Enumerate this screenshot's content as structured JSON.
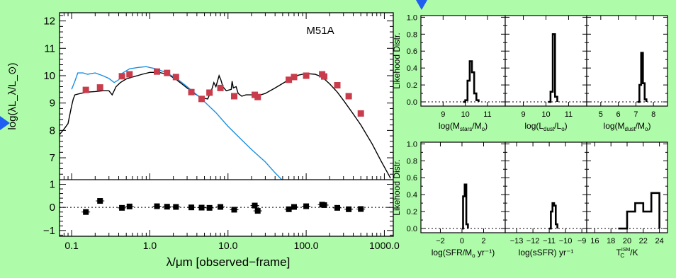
{
  "decorations": {
    "background_color": "#aefba9",
    "arrow_color": "#1e5ef0"
  },
  "chart_data": [
    {
      "type": "line",
      "title": "M51A",
      "xlabel": "λ/μm [observed−frame]",
      "ylabel": "log(λL_λ/L_⊙)",
      "xscale": "log",
      "xlim": [
        0.07,
        1300
      ],
      "ylim": [
        6.2,
        12.3
      ],
      "x_ticks": [
        0.1,
        1.0,
        10.0,
        100.0,
        1000.0
      ],
      "x_tick_labels": [
        "0.1",
        "1.0",
        "10.0",
        "100.0",
        "1000.0"
      ],
      "y_ticks": [
        7,
        8,
        9,
        10,
        11,
        12
      ],
      "y_tick_labels": [
        "7",
        "8",
        "9",
        "10",
        "11",
        "12"
      ],
      "series": [
        {
          "role": "model",
          "color": "#000000",
          "points": [
            [
              0.07,
              7.85
            ],
            [
              0.08,
              8.05
            ],
            [
              0.09,
              8.25
            ],
            [
              0.1,
              8.9
            ],
            [
              0.105,
              9.15
            ],
            [
              0.11,
              9.3
            ],
            [
              0.13,
              9.35
            ],
            [
              0.16,
              9.4
            ],
            [
              0.2,
              9.42
            ],
            [
              0.25,
              9.45
            ],
            [
              0.3,
              9.45
            ],
            [
              0.33,
              9.3
            ],
            [
              0.37,
              9.6
            ],
            [
              0.42,
              9.75
            ],
            [
              0.5,
              9.88
            ],
            [
              0.6,
              9.95
            ],
            [
              0.8,
              10.05
            ],
            [
              1.0,
              10.12
            ],
            [
              1.3,
              10.12
            ],
            [
              1.7,
              10.05
            ],
            [
              2.2,
              9.85
            ],
            [
              3.0,
              9.55
            ],
            [
              3.7,
              9.35
            ],
            [
              4.5,
              9.2
            ],
            [
              5.5,
              9.15
            ],
            [
              6.2,
              9.5
            ],
            [
              6.6,
              9.75
            ],
            [
              7.0,
              9.6
            ],
            [
              7.7,
              10.0
            ],
            [
              8.1,
              9.85
            ],
            [
              8.6,
              9.6
            ],
            [
              9.5,
              9.45
            ],
            [
              11.0,
              9.5
            ],
            [
              11.3,
              9.8
            ],
            [
              11.7,
              9.55
            ],
            [
              12.7,
              9.6
            ],
            [
              13.5,
              9.35
            ],
            [
              15,
              9.25
            ],
            [
              17,
              9.3
            ],
            [
              20,
              9.3
            ],
            [
              25,
              9.28
            ],
            [
              30,
              9.35
            ],
            [
              40,
              9.55
            ],
            [
              60,
              9.85
            ],
            [
              80,
              10.02
            ],
            [
              100,
              10.08
            ],
            [
              130,
              10.05
            ],
            [
              160,
              9.95
            ],
            [
              200,
              9.7
            ],
            [
              250,
              9.4
            ],
            [
              300,
              9.1
            ],
            [
              400,
              8.6
            ],
            [
              500,
              8.2
            ],
            [
              700,
              7.5
            ],
            [
              900,
              6.9
            ],
            [
              1200,
              6.25
            ]
          ]
        },
        {
          "role": "stellar",
          "color": "#1a8fe0",
          "points": [
            [
              0.1,
              9.5
            ],
            [
              0.11,
              9.8
            ],
            [
              0.12,
              10.1
            ],
            [
              0.14,
              10.1
            ],
            [
              0.16,
              10.05
            ],
            [
              0.2,
              10.1
            ],
            [
              0.25,
              10.0
            ],
            [
              0.3,
              9.9
            ],
            [
              0.35,
              9.75
            ],
            [
              0.4,
              9.85
            ],
            [
              0.45,
              10.1
            ],
            [
              0.55,
              10.25
            ],
            [
              0.7,
              10.3
            ],
            [
              0.9,
              10.33
            ],
            [
              1.0,
              10.3
            ],
            [
              1.2,
              10.25
            ],
            [
              1.6,
              10.12
            ],
            [
              2.2,
              9.9
            ],
            [
              3,
              9.6
            ],
            [
              4,
              9.3
            ],
            [
              5,
              9.05
            ],
            [
              7,
              8.65
            ],
            [
              10,
              8.15
            ],
            [
              15,
              7.65
            ],
            [
              20,
              7.3
            ],
            [
              30,
              6.85
            ],
            [
              40,
              6.45
            ],
            [
              55,
              6.05
            ]
          ]
        }
      ],
      "observed": {
        "color": "#c83c4b",
        "x": [
          0.152,
          0.231,
          0.44,
          0.55,
          1.235,
          1.662,
          2.159,
          3.4,
          4.6,
          5.8,
          8.0,
          12.0,
          22.0,
          24.0,
          60.0,
          70.0,
          100.0,
          160.0,
          170.0,
          250.0,
          350.0,
          500.0
        ],
        "y": [
          9.48,
          9.57,
          9.98,
          10.05,
          10.15,
          10.1,
          9.95,
          9.4,
          9.15,
          9.38,
          9.55,
          9.25,
          9.3,
          9.22,
          9.85,
          9.95,
          10.0,
          10.05,
          9.97,
          9.65,
          9.25,
          8.62
        ]
      },
      "residuals": {
        "ylim": [
          -1.25,
          1.2
        ],
        "y_ticks": [
          -1,
          0,
          1
        ],
        "y_tick_labels": [
          "−1",
          "0",
          "1"
        ],
        "x": [
          0.152,
          0.231,
          0.44,
          0.55,
          1.235,
          1.662,
          2.159,
          3.4,
          4.6,
          5.8,
          8.0,
          12.0,
          22.0,
          24.0,
          60.0,
          70.0,
          100.0,
          160.0,
          170.0,
          250.0,
          350.0,
          500.0
        ],
        "y": [
          -0.2,
          0.28,
          -0.02,
          0.04,
          0.05,
          0.03,
          0.02,
          0.0,
          -0.01,
          -0.02,
          0.02,
          -0.1,
          0.08,
          -0.15,
          -0.08,
          0.02,
          0.05,
          0.12,
          0.1,
          -0.02,
          -0.08,
          -0.07
        ]
      }
    },
    {
      "type": "bar",
      "ylabel": "Likehood Distr.",
      "ylim": [
        -0.05,
        1.02
      ],
      "y_ticks": [
        0.0,
        0.2,
        0.4,
        0.6,
        0.8,
        1.0
      ],
      "y_tick_labels": [
        "0.0",
        "0.2",
        "0.4",
        "0.6",
        "0.8",
        "1.0"
      ],
      "panels": [
        {
          "xlabel": "log(M_stars/M_o)",
          "xlim": [
            8.0,
            11.8
          ],
          "x_ticks": [
            9,
            10,
            11
          ],
          "x_tick_labels": [
            "9",
            "10",
            "11"
          ],
          "hist": [
            [
              9.9,
              0.0
            ],
            [
              10.0,
              0.02
            ],
            [
              10.1,
              0.25
            ],
            [
              10.2,
              0.48
            ],
            [
              10.3,
              0.35
            ],
            [
              10.4,
              0.1
            ],
            [
              10.5,
              0.02
            ],
            [
              10.6,
              0.0
            ]
          ]
        },
        {
          "xlabel": "log(L_dust/L_o)",
          "xlim": [
            8.2,
            11.8
          ],
          "x_ticks": [
            9,
            10,
            11
          ],
          "x_tick_labels": [
            "9",
            "10",
            "11"
          ],
          "hist": [
            [
              10.1,
              0.0
            ],
            [
              10.2,
              0.12
            ],
            [
              10.3,
              0.8
            ],
            [
              10.4,
              0.06
            ],
            [
              10.5,
              0.0
            ]
          ]
        },
        {
          "xlabel": "log(M_dust/M_o)",
          "xlim": [
            4.2,
            8.8
          ],
          "x_ticks": [
            5,
            6,
            7,
            8
          ],
          "x_tick_labels": [
            "5",
            "6",
            "7",
            "8"
          ],
          "hist": [
            [
              7.1,
              0.0
            ],
            [
              7.2,
              0.2
            ],
            [
              7.3,
              0.58
            ],
            [
              7.4,
              0.22
            ],
            [
              7.5,
              0.03
            ],
            [
              7.6,
              0.0
            ]
          ]
        },
        {
          "xlabel": "log(SFR/M_o yr⁻¹)",
          "xlim": [
            -3.8,
            4.0
          ],
          "x_ticks": [
            -2,
            0,
            2
          ],
          "x_tick_labels": [
            "−2",
            "0",
            "2"
          ],
          "hist": [
            [
              0.0,
              0.0
            ],
            [
              0.1,
              0.38
            ],
            [
              0.25,
              0.52
            ],
            [
              0.4,
              0.05
            ],
            [
              0.55,
              0.0
            ]
          ]
        },
        {
          "xlabel": "log(sSFR) yr⁻¹",
          "xlim": [
            -13.7,
            -8.7
          ],
          "x_ticks": [
            -13,
            -12,
            -11,
            -10,
            -9
          ],
          "x_tick_labels": [
            "−13",
            "−12",
            "−11",
            "−10",
            "−9"
          ],
          "hist": [
            [
              -11.0,
              0.0
            ],
            [
              -10.9,
              0.2
            ],
            [
              -10.8,
              0.3
            ],
            [
              -10.7,
              0.27
            ],
            [
              -10.6,
              0.05
            ],
            [
              -10.5,
              0.0
            ]
          ]
        },
        {
          "xlabel": "T_C^ISM/K",
          "xlim": [
            15.0,
            25.0
          ],
          "x_ticks": [
            16,
            18,
            20,
            22,
            24
          ],
          "x_tick_labels": [
            "16",
            "18",
            "20",
            "22",
            "24"
          ],
          "hist": [
            [
              18.9,
              0.0
            ],
            [
              20.0,
              0.2
            ],
            [
              21.0,
              0.3
            ],
            [
              22.0,
              0.2
            ],
            [
              23.0,
              0.42
            ],
            [
              24.0,
              0.0
            ]
          ]
        }
      ]
    }
  ]
}
